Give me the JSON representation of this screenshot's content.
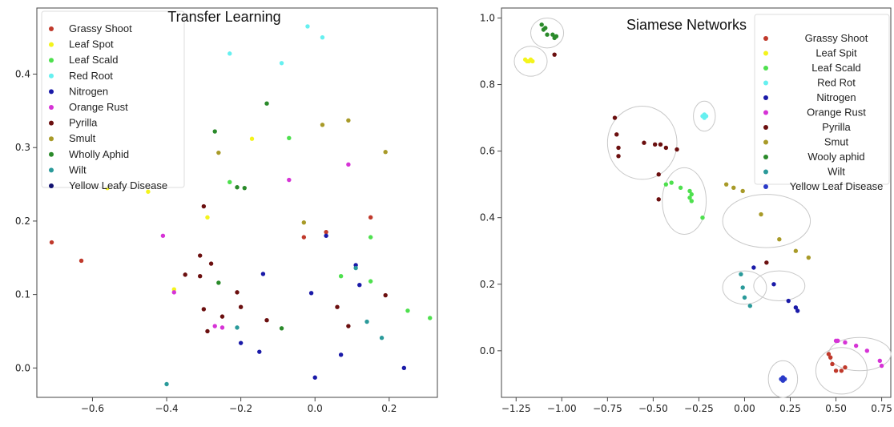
{
  "chart_data": [
    {
      "type": "scatter",
      "title": "Transfer Learning",
      "xlim": [
        -0.75,
        0.33
      ],
      "ylim": [
        -0.04,
        0.49
      ],
      "xticks": [
        -0.6,
        -0.4,
        -0.2,
        0.0,
        0.2
      ],
      "xtick_labels": [
        "−0.6",
        "−0.4",
        "−0.2",
        "0.0",
        "0.2"
      ],
      "yticks": [
        0.0,
        0.1,
        0.2,
        0.3,
        0.4
      ],
      "ytick_labels": [
        "0.0",
        "0.1",
        "0.2",
        "0.3",
        "0.4"
      ],
      "legend_position": "top-left",
      "series": [
        {
          "name": "Grassy Shoot",
          "color": "#c0392b",
          "points": [
            [
              -0.71,
              0.171
            ],
            [
              -0.63,
              0.146
            ],
            [
              -0.03,
              0.178
            ],
            [
              0.03,
              0.185
            ],
            [
              0.15,
              0.205
            ]
          ]
        },
        {
          "name": "Leaf Spot",
          "color": "#f4f41c",
          "points": [
            [
              -0.56,
              0.245
            ],
            [
              -0.45,
              0.24
            ],
            [
              -0.17,
              0.312
            ],
            [
              -0.29,
              0.205
            ],
            [
              -0.38,
              0.107
            ]
          ]
        },
        {
          "name": "Leaf Scald",
          "color": "#4ee04e",
          "points": [
            [
              -0.07,
              0.313
            ],
            [
              -0.23,
              0.253
            ],
            [
              0.15,
              0.178
            ],
            [
              0.07,
              0.125
            ],
            [
              0.15,
              0.118
            ],
            [
              0.25,
              0.078
            ],
            [
              0.31,
              0.068
            ]
          ]
        },
        {
          "name": "Red Root",
          "color": "#66f0f0",
          "points": [
            [
              -0.02,
              0.465
            ],
            [
              0.02,
              0.45
            ],
            [
              -0.23,
              0.428
            ],
            [
              -0.09,
              0.415
            ]
          ]
        },
        {
          "name": "Nitrogen",
          "color": "#1a1aa8",
          "points": [
            [
              0.11,
              0.14
            ],
            [
              0.12,
              0.113
            ],
            [
              -0.14,
              0.128
            ],
            [
              -0.01,
              0.102
            ],
            [
              -0.2,
              0.034
            ],
            [
              -0.15,
              0.022
            ],
            [
              0.07,
              0.018
            ],
            [
              0.24,
              0.0
            ],
            [
              0.0,
              -0.013
            ],
            [
              0.03,
              0.18
            ]
          ]
        },
        {
          "name": "Orange Rust",
          "color": "#d633d6",
          "points": [
            [
              0.09,
              0.277
            ],
            [
              -0.07,
              0.256
            ],
            [
              -0.41,
              0.18
            ],
            [
              -0.38,
              0.103
            ],
            [
              -0.27,
              0.057
            ],
            [
              -0.25,
              0.055
            ]
          ]
        },
        {
          "name": "Pyrilla",
          "color": "#6b0f0f",
          "points": [
            [
              -0.3,
              0.22
            ],
            [
              -0.35,
              0.127
            ],
            [
              -0.31,
              0.153
            ],
            [
              -0.28,
              0.142
            ],
            [
              -0.31,
              0.125
            ],
            [
              -0.21,
              0.103
            ],
            [
              -0.3,
              0.08
            ],
            [
              -0.2,
              0.083
            ],
            [
              -0.25,
              0.07
            ],
            [
              -0.29,
              0.05
            ],
            [
              -0.13,
              0.065
            ],
            [
              0.06,
              0.083
            ],
            [
              0.09,
              0.057
            ],
            [
              0.19,
              0.099
            ]
          ]
        },
        {
          "name": "Smult",
          "color": "#a89a28",
          "points": [
            [
              0.09,
              0.337
            ],
            [
              0.02,
              0.331
            ],
            [
              0.19,
              0.294
            ],
            [
              -0.26,
              0.293
            ],
            [
              -0.03,
              0.198
            ]
          ]
        },
        {
          "name": "Wholly Aphid",
          "color": "#2a8a2a",
          "points": [
            [
              -0.13,
              0.36
            ],
            [
              -0.27,
              0.322
            ],
            [
              -0.21,
              0.246
            ],
            [
              -0.19,
              0.245
            ],
            [
              -0.26,
              0.116
            ],
            [
              -0.09,
              0.054
            ]
          ]
        },
        {
          "name": "Wilt",
          "color": "#2a9a9a",
          "points": [
            [
              -0.4,
              -0.022
            ],
            [
              -0.21,
              0.055
            ],
            [
              0.11,
              0.136
            ],
            [
              0.14,
              0.063
            ],
            [
              0.18,
              0.041
            ]
          ]
        },
        {
          "name": "Yellow Leafy Disease",
          "color": "#101070",
          "points": []
        }
      ]
    },
    {
      "type": "scatter",
      "title": "Siamese Networks",
      "xlim": [
        -1.33,
        0.8
      ],
      "ylim": [
        -0.14,
        1.03
      ],
      "xticks": [
        -1.25,
        -1.0,
        -0.75,
        -0.5,
        -0.25,
        0.0,
        0.25,
        0.5,
        0.75
      ],
      "xtick_labels": [
        "−1.25",
        "−1.00",
        "−0.75",
        "−0.50",
        "−0.25",
        "0.00",
        "0.25",
        "0.50",
        "0.75"
      ],
      "yticks": [
        0.0,
        0.2,
        0.4,
        0.6,
        0.8,
        1.0
      ],
      "ytick_labels": [
        "0.0",
        "0.2",
        "0.4",
        "0.6",
        "0.8",
        "1.0"
      ],
      "legend_position": "top-right",
      "series": [
        {
          "name": "Grassy Shoot",
          "color": "#c0392b",
          "points": [
            [
              0.46,
              -0.01
            ],
            [
              0.48,
              -0.04
            ],
            [
              0.5,
              -0.06
            ],
            [
              0.53,
              -0.06
            ],
            [
              0.55,
              -0.05
            ],
            [
              0.47,
              -0.02
            ]
          ]
        },
        {
          "name": "Leaf Spit",
          "color": "#f4f41c",
          "points": [
            [
              -1.2,
              0.875
            ],
            [
              -1.18,
              0.87
            ],
            [
              -1.16,
              0.87
            ],
            [
              -1.17,
              0.875
            ],
            [
              -1.19,
              0.87
            ]
          ]
        },
        {
          "name": "Leaf Scald",
          "color": "#4ee04e",
          "points": [
            [
              -0.43,
              0.5
            ],
            [
              -0.4,
              0.505
            ],
            [
              -0.35,
              0.49
            ],
            [
              -0.3,
              0.48
            ],
            [
              -0.3,
              0.46
            ],
            [
              -0.29,
              0.47
            ],
            [
              -0.29,
              0.45
            ],
            [
              -0.23,
              0.4
            ]
          ]
        },
        {
          "name": "Red Rot",
          "color": "#66f0f0",
          "points": [
            [
              -0.23,
              0.705
            ],
            [
              -0.22,
              0.7
            ],
            [
              -0.21,
              0.705
            ],
            [
              -0.22,
              0.71
            ]
          ]
        },
        {
          "name": "Nitrogen",
          "color": "#1a1aa8",
          "points": [
            [
              0.05,
              0.25
            ],
            [
              0.16,
              0.2
            ],
            [
              0.24,
              0.15
            ],
            [
              0.28,
              0.13
            ],
            [
              0.29,
              0.12
            ]
          ]
        },
        {
          "name": "Orange Rust",
          "color": "#d633d6",
          "points": [
            [
              0.5,
              0.03
            ],
            [
              0.51,
              0.03
            ],
            [
              0.55,
              0.025
            ],
            [
              0.61,
              0.015
            ],
            [
              0.67,
              0.0
            ],
            [
              0.74,
              -0.03
            ],
            [
              0.75,
              -0.045
            ]
          ]
        },
        {
          "name": "Pyrilla",
          "color": "#6b0f0f",
          "points": [
            [
              -1.04,
              0.89
            ],
            [
              -0.71,
              0.7
            ],
            [
              -0.7,
              0.65
            ],
            [
              -0.69,
              0.61
            ],
            [
              -0.69,
              0.585
            ],
            [
              -0.55,
              0.625
            ],
            [
              -0.49,
              0.62
            ],
            [
              -0.46,
              0.62
            ],
            [
              -0.43,
              0.61
            ],
            [
              -0.37,
              0.605
            ],
            [
              -0.47,
              0.53
            ],
            [
              -0.47,
              0.455
            ],
            [
              0.12,
              0.265
            ]
          ]
        },
        {
          "name": "Smut",
          "color": "#a89a28",
          "points": [
            [
              -0.1,
              0.5
            ],
            [
              -0.06,
              0.49
            ],
            [
              -0.01,
              0.48
            ],
            [
              0.09,
              0.41
            ],
            [
              0.19,
              0.335
            ],
            [
              0.28,
              0.3
            ],
            [
              0.35,
              0.28
            ]
          ]
        },
        {
          "name": "Wooly aphid",
          "color": "#2a8a2a",
          "points": [
            [
              -1.11,
              0.98
            ],
            [
              -1.1,
              0.965
            ],
            [
              -1.08,
              0.95
            ],
            [
              -1.05,
              0.95
            ],
            [
              -1.04,
              0.94
            ],
            [
              -1.03,
              0.945
            ],
            [
              -1.09,
              0.97
            ]
          ]
        },
        {
          "name": "Wilt",
          "color": "#2a9a9a",
          "points": [
            [
              -0.02,
              0.23
            ],
            [
              -0.01,
              0.19
            ],
            [
              0.0,
              0.16
            ],
            [
              0.03,
              0.135
            ]
          ]
        },
        {
          "name": "Yellow Leaf Disease",
          "color": "#2a3ac8",
          "points": [
            [
              0.2,
              -0.085
            ],
            [
              0.21,
              -0.08
            ],
            [
              0.22,
              -0.085
            ],
            [
              0.21,
              -0.09
            ]
          ]
        }
      ],
      "clusters": [
        {
          "cx": -1.08,
          "cy": 0.955,
          "rx": 0.09,
          "ry": 0.045
        },
        {
          "cx": -1.17,
          "cy": 0.87,
          "rx": 0.09,
          "ry": 0.045
        },
        {
          "cx": -0.56,
          "cy": 0.625,
          "rx": 0.19,
          "ry": 0.11
        },
        {
          "cx": -0.22,
          "cy": 0.705,
          "rx": 0.06,
          "ry": 0.045
        },
        {
          "cx": -0.33,
          "cy": 0.45,
          "rx": 0.12,
          "ry": 0.1
        },
        {
          "cx": 0.12,
          "cy": 0.39,
          "rx": 0.24,
          "ry": 0.08
        },
        {
          "cx": 0.0,
          "cy": 0.19,
          "rx": 0.12,
          "ry": 0.05
        },
        {
          "cx": 0.19,
          "cy": 0.195,
          "rx": 0.14,
          "ry": 0.045
        },
        {
          "cx": 0.21,
          "cy": -0.085,
          "rx": 0.08,
          "ry": 0.055
        },
        {
          "cx": 0.53,
          "cy": -0.06,
          "rx": 0.14,
          "ry": 0.07
        },
        {
          "cx": 0.63,
          "cy": -0.01,
          "rx": 0.17,
          "ry": 0.05
        }
      ]
    }
  ]
}
